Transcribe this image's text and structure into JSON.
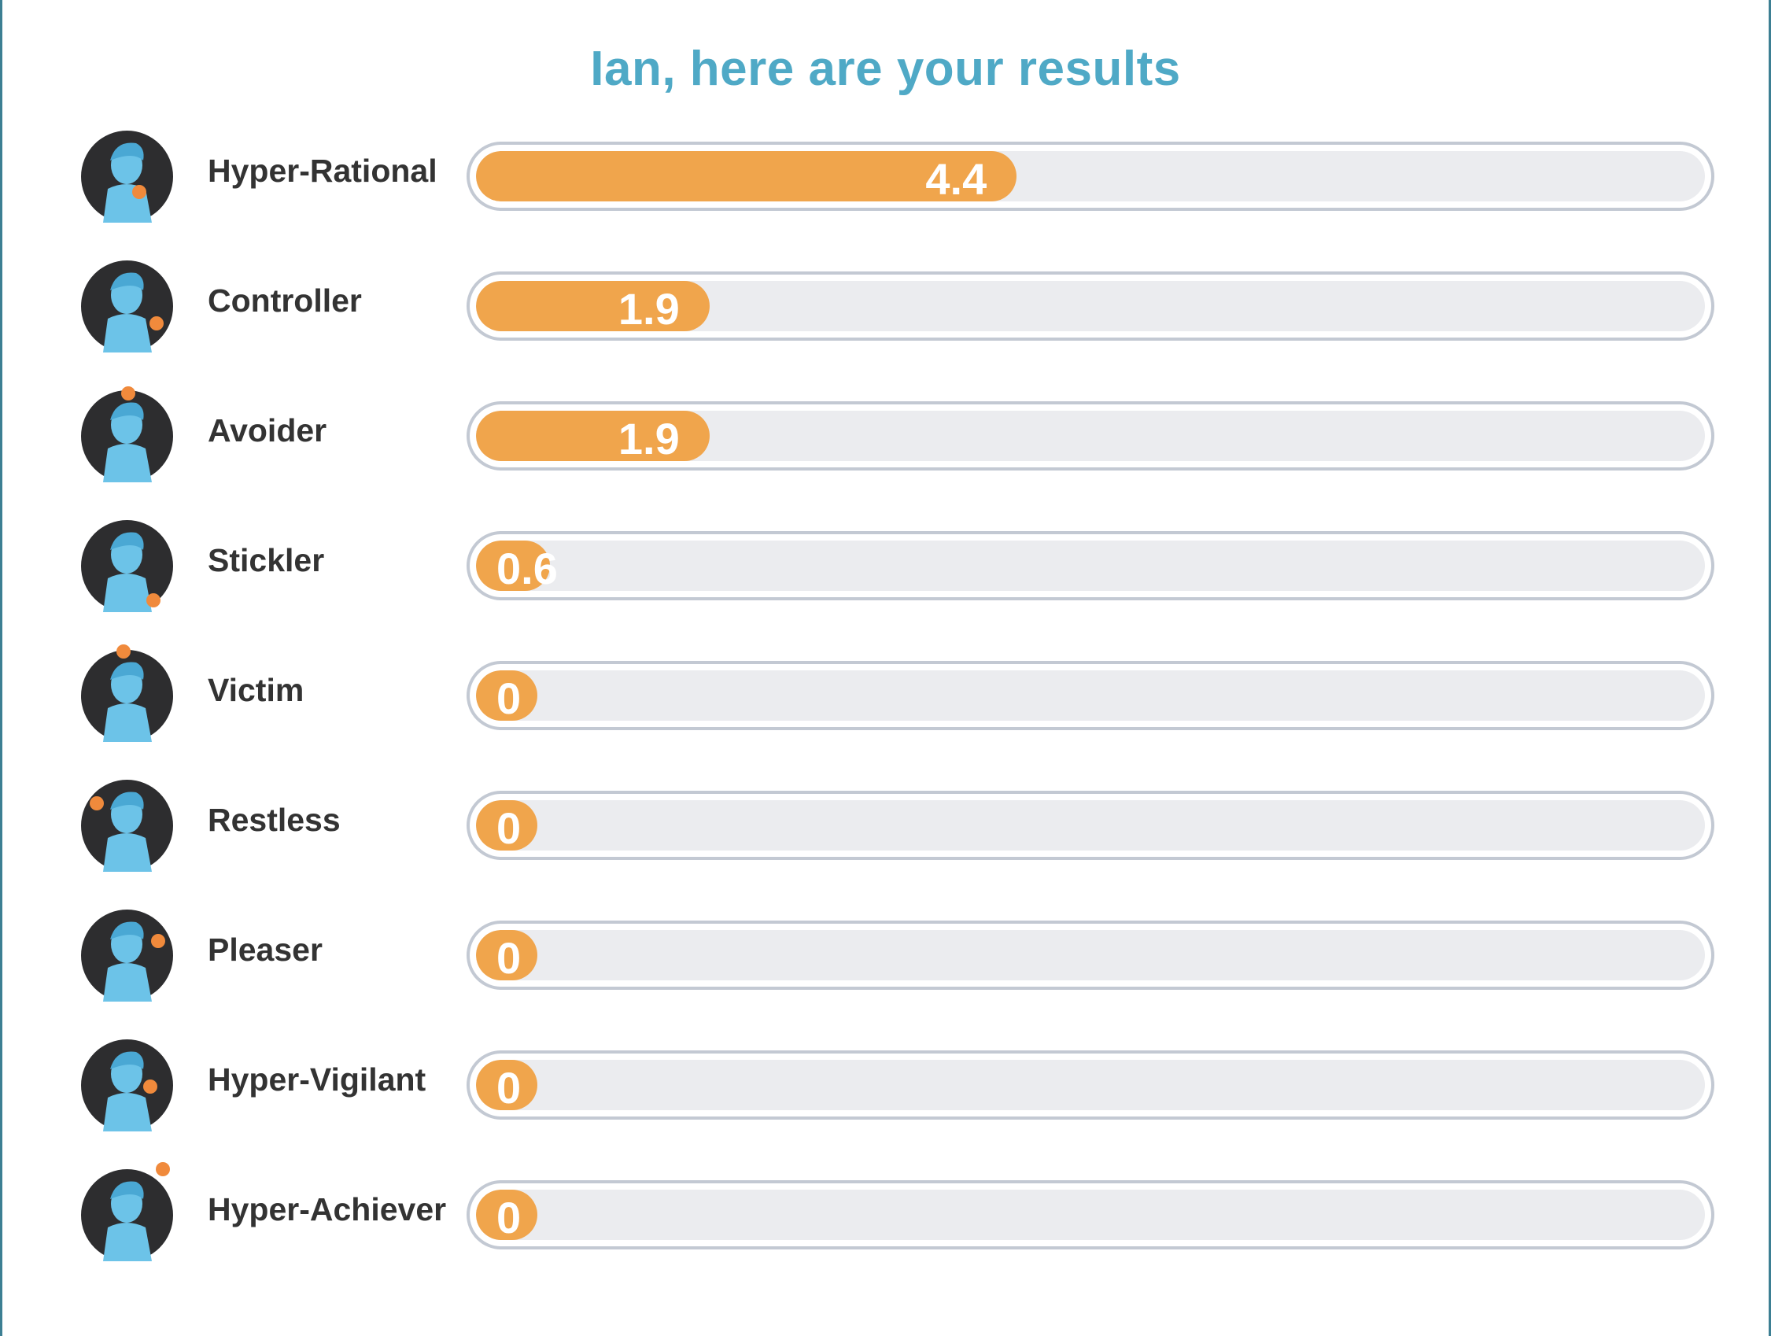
{
  "header": {
    "title": "Ian, here are your results"
  },
  "colors": {
    "title": "#4fa9c6",
    "bar_fill": "#f0a54c",
    "track_background": "#ebecef",
    "track_border": "#c3c9d3",
    "avatar_circle": "#2d2d2f",
    "avatar_figure": "#6cc3e8",
    "accent": "#f08a3c"
  },
  "chart_data": {
    "type": "bar",
    "orientation": "horizontal",
    "categories": [
      "Hyper-Rational",
      "Controller",
      "Avoider",
      "Stickler",
      "Victim",
      "Restless",
      "Pleaser",
      "Hyper-Vigilant",
      "Hyper-Achiever"
    ],
    "values": [
      4.4,
      1.9,
      1.9,
      0.6,
      0,
      0,
      0,
      0,
      0
    ],
    "value_labels": [
      "4.4",
      "1.9",
      "1.9",
      "0.6",
      "0",
      "0",
      "0",
      "0",
      "0"
    ],
    "xlim": [
      0,
      10
    ],
    "title": "Ian, here are your results",
    "xlabel": "",
    "ylabel": "",
    "grid": false,
    "legend": "none"
  },
  "rows": [
    {
      "label": "Hyper-Rational",
      "icon": "hyper-rational-avatar-icon"
    },
    {
      "label": "Controller",
      "icon": "controller-avatar-icon"
    },
    {
      "label": "Avoider",
      "icon": "avoider-avatar-icon"
    },
    {
      "label": "Stickler",
      "icon": "stickler-avatar-icon"
    },
    {
      "label": "Victim",
      "icon": "victim-avatar-icon"
    },
    {
      "label": "Restless",
      "icon": "restless-avatar-icon"
    },
    {
      "label": "Pleaser",
      "icon": "pleaser-avatar-icon"
    },
    {
      "label": "Hyper-Vigilant",
      "icon": "hyper-vigilant-avatar-icon"
    },
    {
      "label": "Hyper-Achiever",
      "icon": "hyper-achiever-avatar-icon"
    }
  ]
}
